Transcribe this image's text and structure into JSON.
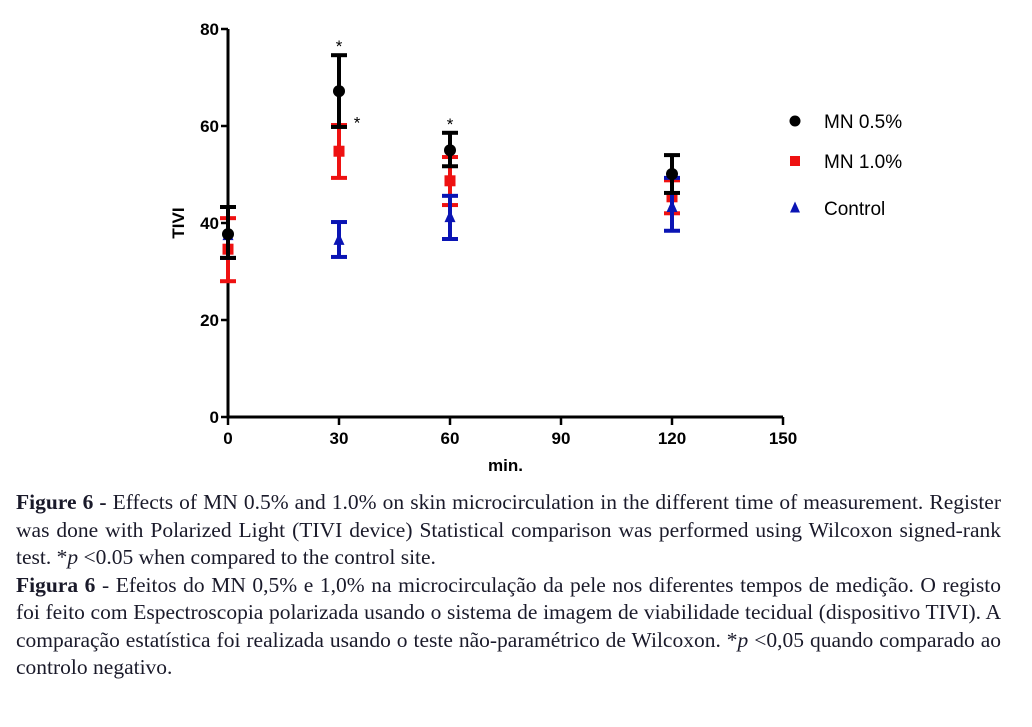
{
  "chart_data": {
    "type": "scatter",
    "title": "",
    "xlabel": "min.",
    "ylabel": "TIVI",
    "xlim": [
      0,
      150
    ],
    "ylim": [
      0,
      80
    ],
    "xticks": [
      0,
      30,
      60,
      90,
      120,
      150
    ],
    "yticks": [
      0,
      20,
      40,
      60,
      80
    ],
    "xtick_labels": [
      "0",
      "30",
      "60",
      "90",
      "120",
      "150"
    ],
    "ytick_labels": [
      "0",
      "20",
      "40",
      "60",
      "80"
    ],
    "grid": false,
    "legend_position": "right",
    "error_bars": true,
    "series": [
      {
        "name": "MN 0.5%",
        "color": "#000000",
        "marker": "circle",
        "x": [
          0,
          30,
          60,
          120
        ],
        "y": [
          37.7,
          67.2,
          55.0,
          50.1
        ],
        "err_low": [
          32.8,
          59.8,
          51.7,
          46.2
        ],
        "err_high": [
          43.3,
          74.6,
          58.6,
          54.0
        ]
      },
      {
        "name": "MN 1.0%",
        "color": "#ee1111",
        "marker": "square",
        "x": [
          0,
          30,
          60,
          120
        ],
        "y": [
          34.6,
          54.8,
          48.7,
          45.4
        ],
        "err_low": [
          28.0,
          49.3,
          43.7,
          42.0
        ],
        "err_high": [
          41.0,
          60.2,
          53.6,
          48.8
        ]
      },
      {
        "name": "Control",
        "color": "#0a14b4",
        "marker": "triangle",
        "x": [
          0,
          30,
          60,
          120
        ],
        "y": [
          37.5,
          36.5,
          41.2,
          43.3
        ],
        "err_low": [
          32.8,
          33.0,
          36.7,
          38.4
        ],
        "err_high": [
          43.3,
          40.2,
          45.6,
          49.3
        ]
      }
    ],
    "annotations": [
      {
        "text": "*",
        "x": 30,
        "y": 74.6,
        "series": "MN 0.5%"
      },
      {
        "text": "*",
        "x": 30,
        "y": 57.0,
        "series": "MN 1.0%"
      },
      {
        "text": "*",
        "x": 60,
        "y": 58.6,
        "series": "MN 0.5%"
      }
    ]
  },
  "caption": {
    "en_label": "Figure 6 -",
    "en_text": " Effects of MN 0.5% and 1.0% on skin microcirculation in the different time of measurement. Register was done with Polarized Light (TIVI device) Statistical comparison was performed using Wilcoxon signed-rank test. *",
    "en_p": "p",
    "en_tail": " <0.05 when compared to the control site.",
    "pt_label": "Figura 6",
    "pt_text": " - Efeitos do MN 0,5% e 1,0% na microcirculação da pele nos diferentes tempos de medição. O registo foi feito com Espectroscopia polarizada usando o sistema de imagem de viabilidade tecidual (dispositivo TIVI). A comparação estatística foi realizada usando o teste não-paramétrico de Wilcoxon. *",
    "pt_p": "p",
    "pt_tail": " <0,05 quando comparado ao controlo negativo."
  }
}
